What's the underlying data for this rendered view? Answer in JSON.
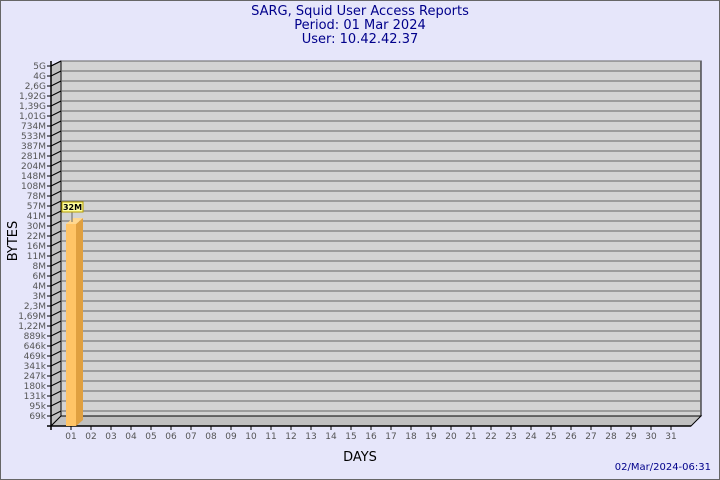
{
  "header": {
    "title": "SARG, Squid User Access Reports",
    "period": "Period: 01 Mar 2024",
    "user": "User: 10.42.42.37"
  },
  "footer": {
    "timestamp": "02/Mar/2024-06:31"
  },
  "chart_data": {
    "type": "bar",
    "title": "SARG, Squid User Access Reports",
    "xlabel": "DAYS",
    "ylabel": "BYTES",
    "y_scale": "log",
    "y_ticks": [
      "5G",
      "4G",
      "2,6G",
      "1,92G",
      "1,39G",
      "1,01G",
      "734M",
      "533M",
      "387M",
      "281M",
      "204M",
      "148M",
      "108M",
      "78M",
      "57M",
      "41M",
      "30M",
      "22M",
      "16M",
      "11M",
      "8M",
      "6M",
      "4M",
      "3M",
      "2,3M",
      "1,69M",
      "1,22M",
      "889k",
      "646k",
      "469k",
      "341k",
      "247k",
      "180k",
      "131k",
      "95k",
      "69k"
    ],
    "categories": [
      "01",
      "02",
      "03",
      "04",
      "05",
      "06",
      "07",
      "08",
      "09",
      "10",
      "11",
      "12",
      "13",
      "14",
      "15",
      "16",
      "17",
      "18",
      "19",
      "20",
      "21",
      "22",
      "23",
      "24",
      "25",
      "26",
      "27",
      "28",
      "29",
      "30",
      "31"
    ],
    "values": [
      {
        "day": "01",
        "bytes": "32M",
        "value": 32000000
      }
    ],
    "grid": true,
    "colors": {
      "bar_front": "#ffc466",
      "bar_side": "#e0a040",
      "plot_bg": "#d3d3d3",
      "label_bg": "#ffffa0",
      "title": "#00008b",
      "background": "#e6e6fa"
    }
  }
}
